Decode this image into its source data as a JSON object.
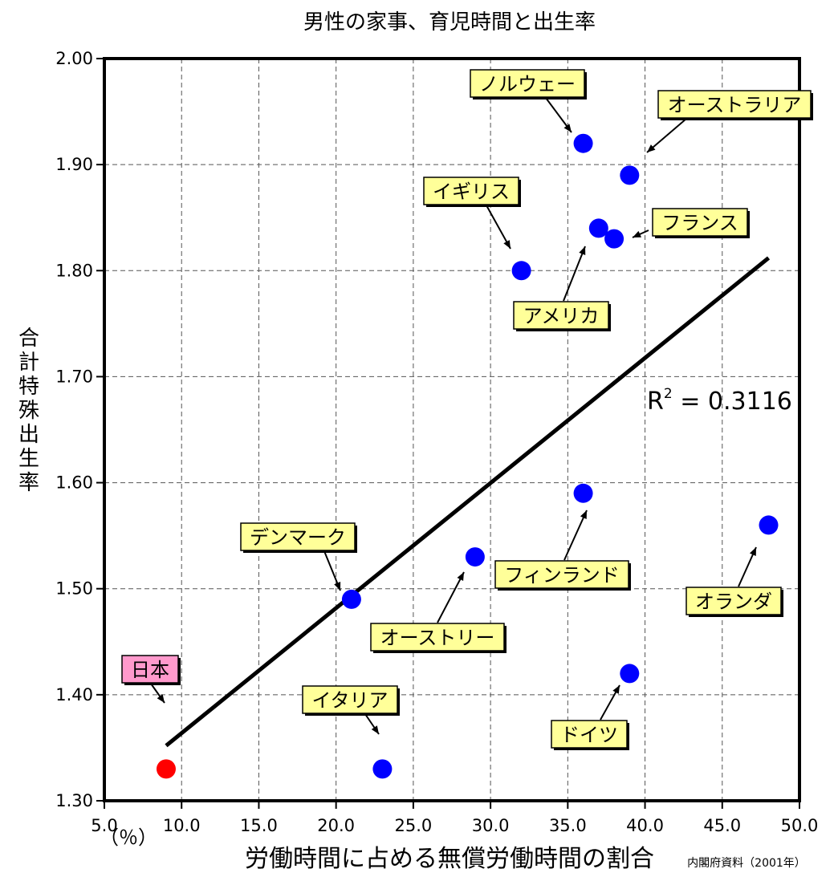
{
  "chart_data": {
    "type": "scatter",
    "title": "男性の家事、育児時間と出生率",
    "xlabel": "労働時間に占める無償労働時間の割合",
    "x_unit": "（％）",
    "ylabel": "合計特殊出生率",
    "source": "内閣府資料（2001年）",
    "xlim": [
      5.0,
      50.0
    ],
    "ylim": [
      1.3,
      2.0
    ],
    "x_ticks": [
      "5.0",
      "10.0",
      "15.0",
      "20.0",
      "25.0",
      "30.0",
      "35.0",
      "40.0",
      "45.0",
      "50.0"
    ],
    "y_ticks": [
      "1.30",
      "1.40",
      "1.50",
      "1.60",
      "1.70",
      "1.80",
      "1.90",
      "2.00"
    ],
    "grid": true,
    "points": [
      {
        "label": "日本",
        "x": 9.0,
        "y": 1.33,
        "color": "#ff0000",
        "label_bg": "#ff99cc"
      },
      {
        "label": "イタリア",
        "x": 23.0,
        "y": 1.33,
        "color": "#0000ff",
        "label_bg": "#ffff99"
      },
      {
        "label": "デンマーク",
        "x": 21.0,
        "y": 1.49,
        "color": "#0000ff",
        "label_bg": "#ffff99"
      },
      {
        "label": "オーストリー",
        "x": 29.0,
        "y": 1.53,
        "color": "#0000ff",
        "label_bg": "#ffff99"
      },
      {
        "label": "フィンランド",
        "x": 36.0,
        "y": 1.59,
        "color": "#0000ff",
        "label_bg": "#ffff99"
      },
      {
        "label": "ドイツ",
        "x": 39.0,
        "y": 1.42,
        "color": "#0000ff",
        "label_bg": "#ffff99"
      },
      {
        "label": "オランダ",
        "x": 48.0,
        "y": 1.56,
        "color": "#0000ff",
        "label_bg": "#ffff99"
      },
      {
        "label": "イギリス",
        "x": 32.0,
        "y": 1.8,
        "color": "#0000ff",
        "label_bg": "#ffff99"
      },
      {
        "label": "アメリカ",
        "x": 37.0,
        "y": 1.84,
        "color": "#0000ff",
        "label_bg": "#ffff99"
      },
      {
        "label": "フランス",
        "x": 38.0,
        "y": 1.83,
        "color": "#0000ff",
        "label_bg": "#ffff99"
      },
      {
        "label": "ノルウェー",
        "x": 36.0,
        "y": 1.92,
        "color": "#0000ff",
        "label_bg": "#ffff99"
      },
      {
        "label": "オーストラリア",
        "x": 39.0,
        "y": 1.89,
        "color": "#0000ff",
        "label_bg": "#ffff99"
      }
    ],
    "trendline": {
      "x": [
        9.0,
        48.0
      ],
      "y": [
        1.352,
        1.812
      ],
      "r2_label": "R",
      "r2_sup": "2",
      "r2_value": " = 0.3116"
    }
  }
}
